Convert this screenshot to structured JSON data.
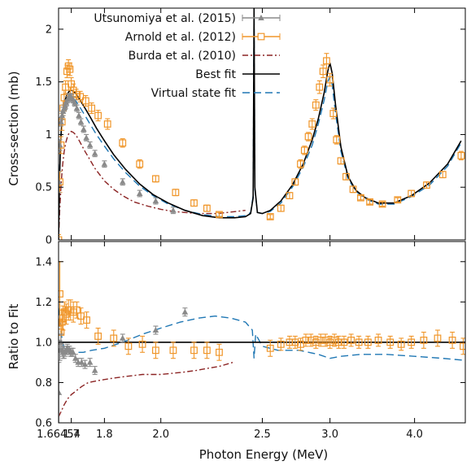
{
  "chart_data": [
    {
      "type": "line",
      "panel": "top",
      "xlabel": "",
      "ylabel": "Cross-section (mb)",
      "ylim": [
        0,
        2.2
      ],
      "x_scale": "reciprocal-energy",
      "yticks": [
        0,
        0.5,
        1,
        1.5,
        2
      ],
      "ytick_labels": [
        "0",
        "0.5",
        "1",
        "1.5",
        "2"
      ],
      "grid": false,
      "legend_position": "top-right",
      "series": [
        {
          "name": "Utsunomiya et al. (2015)",
          "kind": "markers-triangle-errorbars",
          "color": "#8a8a8a",
          "x": [
            1.6654,
            1.668,
            1.671,
            1.674,
            1.677,
            1.68,
            1.683,
            1.686,
            1.689,
            1.692,
            1.695,
            1.698,
            1.701,
            1.705,
            1.71,
            1.716,
            1.722,
            1.728,
            1.736,
            1.744,
            1.755,
            1.77,
            1.8,
            1.86,
            1.92,
            1.98,
            2.05
          ],
          "y": [
            0.55,
            0.9,
            1.12,
            1.18,
            1.22,
            1.25,
            1.27,
            1.3,
            1.33,
            1.35,
            1.36,
            1.36,
            1.35,
            1.33,
            1.3,
            1.25,
            1.18,
            1.12,
            1.05,
            0.97,
            0.9,
            0.82,
            0.72,
            0.55,
            0.44,
            0.37,
            0.28
          ],
          "yerr": [
            0.1,
            0.05,
            0.04,
            0.04,
            0.04,
            0.03,
            0.03,
            0.03,
            0.03,
            0.03,
            0.03,
            0.03,
            0.03,
            0.03,
            0.03,
            0.03,
            0.03,
            0.03,
            0.03,
            0.03,
            0.03,
            0.03,
            0.03,
            0.03,
            0.03,
            0.03,
            0.03
          ]
        },
        {
          "name": "Arnold et al. (2012)",
          "kind": "markers-square-errorbars",
          "color": "#f0962a",
          "x": [
            1.6646,
            1.668,
            1.671,
            1.674,
            1.677,
            1.68,
            1.684,
            1.688,
            1.692,
            1.696,
            1.7,
            1.706,
            1.714,
            1.726,
            1.742,
            1.76,
            1.78,
            1.81,
            1.86,
            1.92,
            1.98,
            2.06,
            2.14,
            2.2,
            2.26,
            2.55,
            2.62,
            2.68,
            2.72,
            2.76,
            2.79,
            2.82,
            2.85,
            2.88,
            2.91,
            2.94,
            2.97,
            3.0,
            3.03,
            3.06,
            3.1,
            3.15,
            3.22,
            3.3,
            3.4,
            3.55,
            3.75,
            3.95,
            4.2,
            4.5,
            4.9
          ],
          "y": [
            0.0,
            0.55,
            0.9,
            1.12,
            1.25,
            1.35,
            1.45,
            1.6,
            1.65,
            1.62,
            1.48,
            1.42,
            1.38,
            1.36,
            1.32,
            1.25,
            1.18,
            1.1,
            0.92,
            0.72,
            0.58,
            0.45,
            0.35,
            0.3,
            0.24,
            0.22,
            0.3,
            0.42,
            0.55,
            0.72,
            0.85,
            0.98,
            1.1,
            1.28,
            1.45,
            1.6,
            1.7,
            1.52,
            1.2,
            0.95,
            0.75,
            0.6,
            0.48,
            0.4,
            0.36,
            0.34,
            0.38,
            0.44,
            0.52,
            0.62,
            0.8
          ],
          "yerr": [
            0.05,
            0.1,
            0.08,
            0.08,
            0.07,
            0.07,
            0.06,
            0.06,
            0.06,
            0.06,
            0.06,
            0.06,
            0.05,
            0.05,
            0.05,
            0.05,
            0.05,
            0.05,
            0.04,
            0.04,
            0.03,
            0.03,
            0.03,
            0.03,
            0.02,
            0.02,
            0.03,
            0.03,
            0.03,
            0.04,
            0.04,
            0.04,
            0.05,
            0.05,
            0.06,
            0.06,
            0.07,
            0.06,
            0.05,
            0.04,
            0.03,
            0.03,
            0.03,
            0.02,
            0.02,
            0.02,
            0.02,
            0.03,
            0.03,
            0.03,
            0.04
          ]
        },
        {
          "name": "Burda et al. (2010)",
          "kind": "dash-dot-line",
          "color": "#8b2323",
          "x": [
            1.6646,
            1.668,
            1.672,
            1.676,
            1.68,
            1.685,
            1.69,
            1.695,
            1.7,
            1.706,
            1.712,
            1.72,
            1.73,
            1.74,
            1.755,
            1.77,
            1.8,
            1.83,
            1.86,
            1.9,
            1.95,
            2.0,
            2.05,
            2.1,
            2.15,
            2.2,
            2.25,
            2.3,
            2.35,
            2.4
          ],
          "y": [
            0.0,
            0.3,
            0.55,
            0.72,
            0.84,
            0.93,
            0.99,
            1.02,
            1.03,
            1.02,
            1.0,
            0.96,
            0.9,
            0.84,
            0.76,
            0.68,
            0.56,
            0.48,
            0.42,
            0.36,
            0.32,
            0.29,
            0.27,
            0.26,
            0.25,
            0.25,
            0.25,
            0.26,
            0.27,
            0.28
          ]
        },
        {
          "name": "Best fit",
          "kind": "solid-line",
          "color": "#000000",
          "x": [
            1.6646,
            1.667,
            1.67,
            1.673,
            1.677,
            1.682,
            1.688,
            1.694,
            1.7,
            1.707,
            1.715,
            1.725,
            1.74,
            1.755,
            1.775,
            1.8,
            1.83,
            1.87,
            1.92,
            1.97,
            2.03,
            2.1,
            2.18,
            2.26,
            2.34,
            2.4,
            2.43,
            2.445,
            2.45,
            2.455,
            2.47,
            2.5,
            2.55,
            2.62,
            2.7,
            2.78,
            2.85,
            2.9,
            2.95,
            2.98,
            3.0,
            3.02,
            3.05,
            3.1,
            3.17,
            3.25,
            3.35,
            3.5,
            3.7,
            3.95,
            4.25,
            4.6,
            4.9
          ],
          "y": [
            0.0,
            0.55,
            0.9,
            1.1,
            1.23,
            1.32,
            1.38,
            1.41,
            1.42,
            1.41,
            1.38,
            1.33,
            1.25,
            1.17,
            1.06,
            0.94,
            0.81,
            0.67,
            0.53,
            0.43,
            0.35,
            0.28,
            0.23,
            0.21,
            0.21,
            0.22,
            0.25,
            0.4,
            2.2,
            0.5,
            0.26,
            0.25,
            0.28,
            0.37,
            0.52,
            0.72,
            0.95,
            1.15,
            1.4,
            1.6,
            1.68,
            1.58,
            1.28,
            0.88,
            0.6,
            0.47,
            0.4,
            0.35,
            0.35,
            0.42,
            0.54,
            0.72,
            0.94
          ]
        },
        {
          "name": "Virtual state fit",
          "kind": "dashed-line",
          "color": "#1f77b4",
          "x": [
            1.6646,
            1.667,
            1.67,
            1.673,
            1.677,
            1.682,
            1.688,
            1.694,
            1.7,
            1.707,
            1.715,
            1.725,
            1.74,
            1.755,
            1.775,
            1.8,
            1.83,
            1.87,
            1.92,
            1.97,
            2.03,
            2.1,
            2.18,
            2.26,
            2.34,
            2.4,
            2.43,
            2.445,
            2.45,
            2.455,
            2.47,
            2.5,
            2.55,
            2.62,
            2.7,
            2.78,
            2.85,
            2.9,
            2.95,
            2.98,
            3.0,
            3.02,
            3.05,
            3.1,
            3.17,
            3.25,
            3.35,
            3.5,
            3.7,
            3.95,
            4.25,
            4.6,
            4.9
          ],
          "y": [
            0.0,
            0.6,
            0.95,
            1.12,
            1.22,
            1.29,
            1.33,
            1.35,
            1.35,
            1.34,
            1.31,
            1.26,
            1.18,
            1.1,
            1.0,
            0.89,
            0.77,
            0.64,
            0.51,
            0.42,
            0.34,
            0.28,
            0.24,
            0.22,
            0.22,
            0.23,
            0.26,
            0.42,
            2.2,
            0.48,
            0.26,
            0.25,
            0.27,
            0.35,
            0.5,
            0.69,
            0.9,
            1.1,
            1.33,
            1.5,
            1.55,
            1.47,
            1.2,
            0.84,
            0.58,
            0.46,
            0.39,
            0.34,
            0.34,
            0.41,
            0.52,
            0.7,
            0.92
          ]
        }
      ]
    },
    {
      "type": "line",
      "panel": "bottom",
      "xlabel": "Photon Energy (MeV)",
      "ylabel": "Ratio to Fit",
      "ylim": [
        0.6,
        1.5
      ],
      "x_scale": "reciprocal-energy",
      "xticks": [
        1.6646,
        1.7,
        1.8,
        2.0,
        2.5,
        3.0,
        4.0
      ],
      "xtick_labels": [
        "1.66454",
        "1.7",
        "1.8",
        "2.0",
        "2.5",
        "3.0",
        "4.0"
      ],
      "yticks": [
        0.6,
        0.8,
        1.0,
        1.2,
        1.4
      ],
      "ytick_labels": [
        "0.6",
        "0.8",
        "1.0",
        "1.2",
        "1.4"
      ],
      "reference_line": 1.0,
      "grid": false,
      "series": [
        {
          "name": "Utsunomiya et al. (2015)",
          "kind": "markers-triangle-errorbars",
          "color": "#8a8a8a",
          "x": [
            1.6654,
            1.668,
            1.671,
            1.674,
            1.677,
            1.68,
            1.683,
            1.686,
            1.689,
            1.692,
            1.695,
            1.698,
            1.701,
            1.705,
            1.712,
            1.72,
            1.73,
            1.74,
            1.755,
            1.77,
            1.86,
            1.98,
            2.1
          ],
          "y": [
            0.75,
            0.96,
            1.0,
            0.96,
            0.95,
            0.95,
            0.95,
            0.96,
            0.97,
            0.96,
            0.96,
            0.95,
            0.95,
            0.95,
            0.92,
            0.9,
            0.9,
            0.89,
            0.9,
            0.86,
            1.02,
            1.06,
            1.15
          ],
          "yerr": [
            0.15,
            0.05,
            0.04,
            0.03,
            0.03,
            0.03,
            0.02,
            0.02,
            0.02,
            0.02,
            0.02,
            0.02,
            0.02,
            0.02,
            0.02,
            0.02,
            0.02,
            0.02,
            0.02,
            0.02,
            0.02,
            0.02,
            0.02
          ]
        },
        {
          "name": "Arnold et al. (2012)",
          "kind": "markers-square-errorbars",
          "color": "#f0962a",
          "x": [
            1.668,
            1.671,
            1.674,
            1.677,
            1.681,
            1.686,
            1.692,
            1.698,
            1.706,
            1.716,
            1.728,
            1.745,
            1.78,
            1.83,
            1.88,
            1.93,
            1.98,
            2.05,
            2.14,
            2.2,
            2.26,
            2.55,
            2.62,
            2.68,
            2.72,
            2.76,
            2.8,
            2.84,
            2.88,
            2.92,
            2.96,
            3.0,
            3.04,
            3.08,
            3.13,
            3.2,
            3.28,
            3.38,
            3.5,
            3.65,
            3.8,
            3.95,
            4.15,
            4.4,
            4.7,
            4.95
          ],
          "y": [
            1.24,
            1.05,
            1.1,
            1.12,
            1.15,
            1.14,
            1.16,
            1.16,
            1.15,
            1.16,
            1.13,
            1.11,
            1.03,
            1.02,
            0.98,
            0.99,
            0.96,
            0.96,
            0.96,
            0.96,
            0.95,
            0.97,
            0.99,
            1.0,
            1.0,
            0.99,
            1.01,
            1.01,
            1.0,
            1.01,
            1.01,
            1.0,
            1.01,
            1.0,
            1.0,
            1.01,
            1.0,
            1.0,
            1.01,
            1.0,
            0.99,
            1.0,
            1.01,
            1.02,
            1.01,
            0.98
          ],
          "yerr": [
            0.16,
            0.06,
            0.06,
            0.06,
            0.05,
            0.05,
            0.05,
            0.05,
            0.05,
            0.04,
            0.04,
            0.04,
            0.04,
            0.04,
            0.04,
            0.04,
            0.04,
            0.04,
            0.04,
            0.04,
            0.04,
            0.04,
            0.03,
            0.03,
            0.03,
            0.03,
            0.03,
            0.03,
            0.03,
            0.03,
            0.03,
            0.03,
            0.03,
            0.03,
            0.03,
            0.03,
            0.03,
            0.03,
            0.03,
            0.03,
            0.03,
            0.03,
            0.04,
            0.04,
            0.04,
            0.04
          ]
        },
        {
          "name": "Burda et al. (2010)",
          "kind": "dash-dot-line",
          "color": "#8b2323",
          "x": [
            1.6646,
            1.67,
            1.675,
            1.68,
            1.69,
            1.7,
            1.715,
            1.73,
            1.75,
            1.78,
            1.82,
            1.87,
            1.93,
            2.0,
            2.08,
            2.15,
            2.2,
            2.26,
            2.33
          ],
          "y": [
            0.63,
            0.65,
            0.67,
            0.69,
            0.72,
            0.74,
            0.76,
            0.78,
            0.8,
            0.81,
            0.82,
            0.83,
            0.84,
            0.84,
            0.85,
            0.86,
            0.87,
            0.88,
            0.9
          ]
        },
        {
          "name": "Virtual state fit",
          "kind": "dashed-line",
          "color": "#1f77b4",
          "x": [
            1.6646,
            1.668,
            1.672,
            1.677,
            1.683,
            1.69,
            1.7,
            1.715,
            1.735,
            1.76,
            1.8,
            1.86,
            1.93,
            2.0,
            2.08,
            2.16,
            2.24,
            2.32,
            2.4,
            2.44,
            2.45,
            2.46,
            2.5,
            2.6,
            2.75,
            2.9,
            3.0,
            3.1,
            3.3,
            3.6,
            4.0,
            4.5,
            5.0
          ],
          "y": [
            1.17,
            1.1,
            1.04,
            0.99,
            0.96,
            0.95,
            0.95,
            0.95,
            0.95,
            0.96,
            0.97,
            1.0,
            1.04,
            1.07,
            1.1,
            1.12,
            1.13,
            1.12,
            1.1,
            1.06,
            0.92,
            1.04,
            0.98,
            0.96,
            0.96,
            0.94,
            0.92,
            0.93,
            0.94,
            0.94,
            0.93,
            0.92,
            0.91
          ]
        },
        {
          "name": "Best fit",
          "kind": "solid-line",
          "color": "#000000",
          "x": [
            1.6646,
            5.0
          ],
          "y": [
            1.0,
            1.0
          ]
        }
      ]
    }
  ]
}
